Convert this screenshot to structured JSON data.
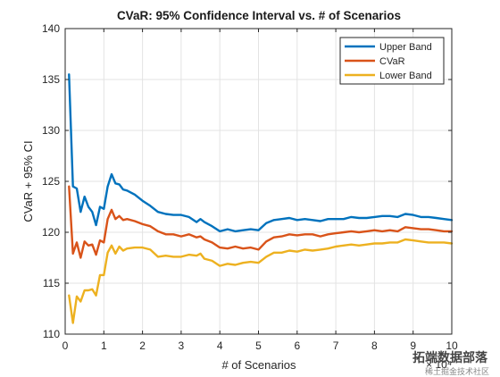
{
  "chart_data": {
    "type": "line",
    "title": "CVaR: 95% Confidence Interval vs. # of Scenarios",
    "xlabel": "# of Scenarios",
    "ylabel": "CVaR + 95% CI",
    "x_exponent": "× 10⁴",
    "xlim": [
      0,
      10
    ],
    "ylim": [
      110,
      140
    ],
    "xticks": [
      0,
      1,
      2,
      3,
      4,
      5,
      6,
      7,
      8,
      9,
      10
    ],
    "xtick_labels": [
      "0",
      "1",
      "2",
      "3",
      "4",
      "5",
      "6",
      "7",
      "8",
      "9",
      "10"
    ],
    "yticks": [
      110,
      115,
      120,
      125,
      130,
      135,
      140
    ],
    "ytick_labels": [
      "110",
      "115",
      "120",
      "125",
      "130",
      "135",
      "140"
    ],
    "grid": true,
    "legend_position": "top-right",
    "series": [
      {
        "name": "Upper Band",
        "color": "#0072BD",
        "x": [
          0.1,
          0.2,
          0.3,
          0.4,
          0.5,
          0.6,
          0.7,
          0.8,
          0.9,
          1.0,
          1.1,
          1.2,
          1.3,
          1.4,
          1.5,
          1.6,
          1.8,
          2.0,
          2.2,
          2.4,
          2.6,
          2.8,
          3.0,
          3.2,
          3.4,
          3.5,
          3.6,
          3.8,
          4.0,
          4.2,
          4.4,
          4.6,
          4.8,
          5.0,
          5.2,
          5.4,
          5.6,
          5.8,
          6.0,
          6.2,
          6.4,
          6.6,
          6.8,
          7.0,
          7.2,
          7.4,
          7.6,
          7.8,
          8.0,
          8.2,
          8.4,
          8.6,
          8.8,
          9.0,
          9.2,
          9.4,
          9.6,
          9.8,
          10.0
        ],
        "y": [
          135.5,
          124.5,
          124.3,
          122.0,
          123.5,
          122.5,
          122.0,
          120.7,
          122.5,
          122.3,
          124.5,
          125.7,
          124.8,
          124.7,
          124.2,
          124.1,
          123.7,
          123.1,
          122.6,
          122.0,
          121.8,
          121.7,
          121.7,
          121.5,
          121.0,
          121.3,
          121.0,
          120.6,
          120.1,
          120.3,
          120.1,
          120.2,
          120.3,
          120.2,
          120.9,
          121.2,
          121.3,
          121.4,
          121.2,
          121.3,
          121.2,
          121.1,
          121.3,
          121.3,
          121.3,
          121.5,
          121.4,
          121.4,
          121.5,
          121.6,
          121.6,
          121.5,
          121.8,
          121.7,
          121.5,
          121.5,
          121.4,
          121.3,
          121.2
        ]
      },
      {
        "name": "CVaR",
        "color": "#D95319",
        "x": [
          0.1,
          0.2,
          0.3,
          0.4,
          0.5,
          0.6,
          0.7,
          0.8,
          0.9,
          1.0,
          1.1,
          1.2,
          1.3,
          1.4,
          1.5,
          1.6,
          1.8,
          2.0,
          2.2,
          2.4,
          2.6,
          2.8,
          3.0,
          3.2,
          3.4,
          3.5,
          3.6,
          3.8,
          4.0,
          4.2,
          4.4,
          4.6,
          4.8,
          5.0,
          5.2,
          5.4,
          5.6,
          5.8,
          6.0,
          6.2,
          6.4,
          6.6,
          6.8,
          7.0,
          7.2,
          7.4,
          7.6,
          7.8,
          8.0,
          8.2,
          8.4,
          8.6,
          8.8,
          9.0,
          9.2,
          9.4,
          9.6,
          9.8,
          10.0
        ],
        "y": [
          124.5,
          117.9,
          119.0,
          117.5,
          119.1,
          118.7,
          118.8,
          117.8,
          119.2,
          119.0,
          121.3,
          122.2,
          121.3,
          121.6,
          121.2,
          121.3,
          121.1,
          120.8,
          120.6,
          120.1,
          119.8,
          119.8,
          119.6,
          119.8,
          119.5,
          119.6,
          119.3,
          119.0,
          118.5,
          118.4,
          118.6,
          118.4,
          118.5,
          118.3,
          119.1,
          119.5,
          119.6,
          119.8,
          119.7,
          119.8,
          119.8,
          119.6,
          119.8,
          119.9,
          120.0,
          120.1,
          120.0,
          120.1,
          120.2,
          120.1,
          120.2,
          120.1,
          120.5,
          120.4,
          120.3,
          120.3,
          120.2,
          120.1,
          120.1
        ]
      },
      {
        "name": "Lower Band",
        "color": "#EDB120",
        "x": [
          0.1,
          0.2,
          0.3,
          0.4,
          0.5,
          0.6,
          0.7,
          0.8,
          0.9,
          1.0,
          1.1,
          1.2,
          1.3,
          1.4,
          1.5,
          1.6,
          1.8,
          2.0,
          2.2,
          2.4,
          2.6,
          2.8,
          3.0,
          3.2,
          3.4,
          3.5,
          3.6,
          3.8,
          4.0,
          4.2,
          4.4,
          4.6,
          4.8,
          5.0,
          5.2,
          5.4,
          5.6,
          5.8,
          6.0,
          6.2,
          6.4,
          6.6,
          6.8,
          7.0,
          7.2,
          7.4,
          7.6,
          7.8,
          8.0,
          8.2,
          8.4,
          8.6,
          8.8,
          9.0,
          9.2,
          9.4,
          9.6,
          9.8,
          10.0
        ],
        "y": [
          113.8,
          111.1,
          113.7,
          113.2,
          114.3,
          114.3,
          114.4,
          113.8,
          115.8,
          115.8,
          118.0,
          118.7,
          117.9,
          118.6,
          118.2,
          118.4,
          118.5,
          118.5,
          118.3,
          117.6,
          117.7,
          117.6,
          117.6,
          117.8,
          117.7,
          117.9,
          117.4,
          117.2,
          116.7,
          116.9,
          116.8,
          117.0,
          117.1,
          117.0,
          117.6,
          118.0,
          118.0,
          118.2,
          118.1,
          118.3,
          118.2,
          118.3,
          118.4,
          118.6,
          118.7,
          118.8,
          118.7,
          118.8,
          118.9,
          118.9,
          119.0,
          119.0,
          119.3,
          119.2,
          119.1,
          119.0,
          119.0,
          119.0,
          118.9
        ]
      }
    ]
  },
  "watermark": {
    "text": "拓端数据部落",
    "subtext": "稀土掘金技术社区"
  }
}
